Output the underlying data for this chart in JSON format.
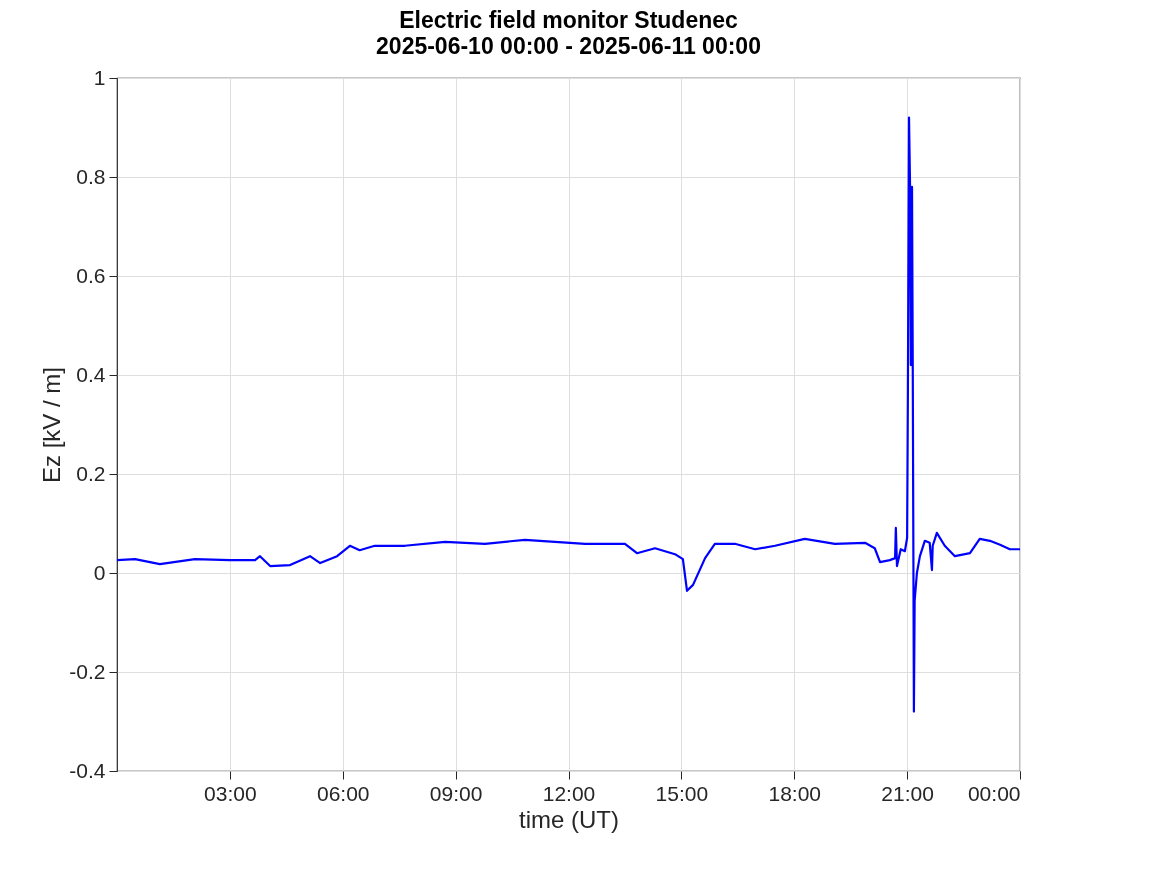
{
  "chart_data": {
    "type": "line",
    "title": "Electric field monitor Studenec",
    "subtitle": "2025-06-10 00:00 - 2025-06-11 00:00",
    "xlabel": "time (UT)",
    "ylabel": "Ez [kV / m]",
    "grid": true,
    "line_style": "solid",
    "marker": "none",
    "xlim": [
      0,
      24
    ],
    "xticks": [
      {
        "value": 3,
        "label": "03:00"
      },
      {
        "value": 6,
        "label": "06:00"
      },
      {
        "value": 9,
        "label": "09:00"
      },
      {
        "value": 12,
        "label": "12:00"
      },
      {
        "value": 15,
        "label": "15:00"
      },
      {
        "value": 18,
        "label": "18:00"
      },
      {
        "value": 21,
        "label": "21:00"
      },
      {
        "value": 24,
        "label": "00:00"
      }
    ],
    "ylim": [
      -0.4,
      1
    ],
    "yticks": [
      -0.4,
      -0.2,
      0,
      0.2,
      0.4,
      0.6,
      0.8,
      1
    ],
    "x": [
      0,
      0.48,
      1.14,
      2.07,
      3.0,
      3.67,
      3.8,
      4.07,
      4.6,
      5.13,
      5.4,
      5.85,
      6.19,
      6.45,
      6.85,
      7.65,
      8.72,
      9.78,
      10.84,
      11.64,
      12.44,
      13.5,
      13.82,
      14.3,
      14.83,
      15.04,
      15.15,
      15.31,
      15.63,
      15.89,
      16.42,
      16.96,
      17.49,
      18.28,
      19.08,
      19.88,
      20.14,
      20.28,
      20.54,
      20.68,
      20.7,
      20.73,
      20.83,
      20.94,
      21.0,
      21.02,
      21.05,
      21.08,
      21.1,
      21.13,
      21.15,
      21.18,
      21.2,
      21.26,
      21.34,
      21.47,
      21.6,
      21.66,
      21.68,
      21.79,
      22.0,
      22.27,
      22.67,
      22.93,
      23.2,
      23.47,
      23.73,
      24
    ],
    "series": [
      {
        "color": "#0000ff",
        "values": [
          0.026,
          0.028,
          0.018,
          0.028,
          0.026,
          0.026,
          0.034,
          0.014,
          0.016,
          0.034,
          0.02,
          0.034,
          0.055,
          0.046,
          0.055,
          0.055,
          0.063,
          0.059,
          0.067,
          0.063,
          0.059,
          0.059,
          0.04,
          0.05,
          0.038,
          0.028,
          -0.036,
          -0.024,
          0.03,
          0.059,
          0.059,
          0.048,
          0.055,
          0.069,
          0.059,
          0.061,
          0.05,
          0.022,
          0.026,
          0.03,
          0.091,
          0.014,
          0.048,
          0.044,
          0.071,
          0.36,
          0.92,
          0.77,
          0.42,
          0.78,
          0.41,
          -0.28,
          -0.056,
          0,
          0.034,
          0.065,
          0.061,
          0.006,
          0.055,
          0.081,
          0.055,
          0.034,
          0.04,
          0.069,
          0.065,
          0.057,
          0.048,
          0.048
        ]
      }
    ]
  }
}
